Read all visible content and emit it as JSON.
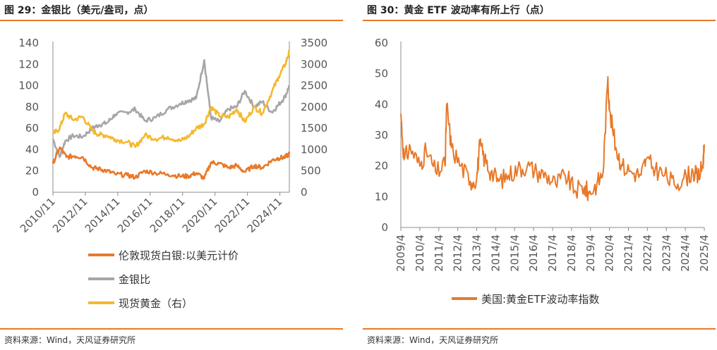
{
  "left": {
    "title": "图 29：金银比（美元/盎司，点）",
    "source": "资料来源：Wind，天风证券研究所",
    "legend": [
      {
        "label": "伦敦现货白银:以美元计价",
        "color": "#e8792a"
      },
      {
        "label": "金银比",
        "color": "#a6a6a6"
      },
      {
        "label": "现货黄金（右）",
        "color": "#f5b82e"
      }
    ]
  },
  "right": {
    "title": "图 30：黄金 ETF 波动率有所上行（点）",
    "source": "资料来源：Wind，天风证券研究所",
    "legend": [
      {
        "label": "美国:黄金ETF波动率指数",
        "color": "#e8792a"
      }
    ]
  },
  "chart_data": [
    {
      "type": "line",
      "x_ticks": [
        "2010/11",
        "2012/11",
        "2014/11",
        "2016/11",
        "2018/11",
        "2020/11",
        "2022/11",
        "2024/11"
      ],
      "y_left": {
        "ticks": [
          "0",
          "20",
          "40",
          "60",
          "80",
          "100",
          "120",
          "140"
        ],
        "ylim": [
          0,
          140
        ]
      },
      "y_right": {
        "ticks": [
          "0",
          "500",
          "1000",
          "1500",
          "2000",
          "2500",
          "3000",
          "3500"
        ],
        "ylim": [
          0,
          3500
        ]
      },
      "xlim": [
        "2010/11",
        "2025/06"
      ],
      "series": [
        {
          "name": "伦敦现货白银:以美元计价",
          "axis": "left",
          "color": "#e8792a",
          "x": [
            "2010/11",
            "2011/04",
            "2011/09",
            "2012/03",
            "2012/09",
            "2013/04",
            "2013/09",
            "2014/03",
            "2014/09",
            "2015/06",
            "2015/12",
            "2016/07",
            "2017/03",
            "2017/12",
            "2018/09",
            "2019/03",
            "2019/09",
            "2020/03",
            "2020/08",
            "2021/02",
            "2021/09",
            "2022/03",
            "2022/09",
            "2023/04",
            "2023/10",
            "2024/05",
            "2024/10",
            "2025/03",
            "2025/06"
          ],
          "values": [
            27,
            42,
            33,
            34,
            33,
            23,
            22,
            20,
            17,
            16,
            14,
            20,
            18,
            17,
            15,
            15,
            18,
            13,
            28,
            27,
            23,
            25,
            19,
            25,
            23,
            30,
            32,
            33,
            36
          ]
        },
        {
          "name": "金银比",
          "axis": "left",
          "color": "#a6a6a6",
          "x": [
            "2010/11",
            "2011/04",
            "2011/08",
            "2012/02",
            "2012/09",
            "2013/04",
            "2013/09",
            "2014/03",
            "2014/09",
            "2015/06",
            "2015/12",
            "2016/07",
            "2017/03",
            "2017/12",
            "2018/09",
            "2019/03",
            "2019/09",
            "2020/03",
            "2020/08",
            "2021/02",
            "2021/09",
            "2022/03",
            "2022/09",
            "2023/04",
            "2023/10",
            "2024/05",
            "2024/10",
            "2025/03",
            "2025/06"
          ],
          "values": [
            50,
            33,
            48,
            53,
            52,
            60,
            63,
            65,
            73,
            75,
            78,
            67,
            70,
            78,
            83,
            86,
            88,
            124,
            70,
            66,
            78,
            80,
            95,
            80,
            85,
            75,
            82,
            90,
            100
          ]
        },
        {
          "name": "现货黄金（右）",
          "axis": "right",
          "color": "#f5b82e",
          "x": [
            "2010/11",
            "2011/04",
            "2011/08",
            "2012/02",
            "2012/09",
            "2013/04",
            "2013/09",
            "2014/03",
            "2014/09",
            "2015/06",
            "2015/12",
            "2016/07",
            "2017/03",
            "2017/12",
            "2018/09",
            "2019/03",
            "2019/09",
            "2020/03",
            "2020/08",
            "2021/02",
            "2021/09",
            "2022/03",
            "2022/09",
            "2023/04",
            "2023/10",
            "2024/05",
            "2024/10",
            "2025/03",
            "2025/06"
          ],
          "values": [
            1360,
            1500,
            1850,
            1700,
            1770,
            1450,
            1350,
            1330,
            1240,
            1180,
            1060,
            1340,
            1250,
            1300,
            1200,
            1300,
            1500,
            1600,
            2000,
            1800,
            1760,
            1950,
            1650,
            2000,
            1850,
            2350,
            2700,
            3000,
            3300
          ]
        }
      ]
    },
    {
      "type": "line",
      "x_ticks": [
        "2009/4",
        "2010/4",
        "2011/4",
        "2012/4",
        "2013/4",
        "2014/4",
        "2015/4",
        "2016/4",
        "2017/4",
        "2018/4",
        "2019/4",
        "2020/4",
        "2021/4",
        "2022/4",
        "2023/4",
        "2024/4",
        "2025/4"
      ],
      "y": {
        "ticks": [
          "0",
          "10",
          "20",
          "30",
          "40",
          "50",
          "60"
        ],
        "ylim": [
          0,
          60
        ]
      },
      "xlim": [
        "2009/4",
        "2025/4"
      ],
      "series": [
        {
          "name": "美国:黄金ETF波动率指数",
          "color": "#e8792a",
          "x": [
            "2009/4",
            "2009/6",
            "2009/10",
            "2010/4",
            "2010/8",
            "2011/2",
            "2011/8",
            "2011/9",
            "2011/12",
            "2012/6",
            "2012/12",
            "2013/4",
            "2013/6",
            "2013/9",
            "2014/1",
            "2014/6",
            "2014/12",
            "2015/6",
            "2015/12",
            "2016/6",
            "2016/12",
            "2017/6",
            "2017/12",
            "2018/6",
            "2018/12",
            "2019/3",
            "2019/8",
            "2019/12",
            "2020/3",
            "2020/4",
            "2020/8",
            "2020/12",
            "2021/6",
            "2021/12",
            "2022/3",
            "2022/9",
            "2023/3",
            "2023/9",
            "2024/3",
            "2024/9",
            "2024/12",
            "2025/3",
            "2025/4"
          ],
          "values": [
            37,
            22,
            26,
            20,
            25,
            18,
            20,
            40,
            26,
            20,
            15,
            16,
            27,
            22,
            18,
            15,
            17,
            19,
            20,
            18,
            17,
            14,
            17,
            12,
            13,
            11,
            14,
            18,
            49,
            38,
            26,
            20,
            18,
            17,
            22,
            19,
            17,
            14,
            16,
            18,
            16,
            20,
            27
          ]
        }
      ]
    }
  ]
}
